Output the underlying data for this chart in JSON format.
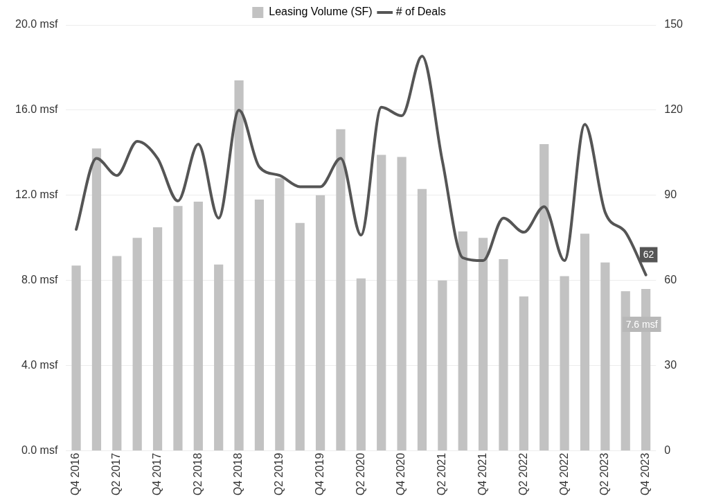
{
  "chart_data": {
    "type": "bar",
    "categories": [
      "Q4 2016",
      null,
      "Q2 2017",
      null,
      "Q4 2017",
      null,
      "Q2 2018",
      null,
      "Q4 2018",
      null,
      "Q2 2019",
      null,
      "Q4 2019",
      null,
      "Q2 2020",
      null,
      "Q4 2020",
      null,
      "Q2 2021",
      null,
      "Q4 2021",
      null,
      "Q2 2022",
      null,
      "Q4 2022",
      null,
      "Q2 2023",
      null,
      "Q4 2023"
    ],
    "series": [
      {
        "name": "Leasing Volume (SF)",
        "color": "#c2c2c2",
        "values": [
          8.7,
          14.2,
          9.15,
          10.0,
          10.5,
          11.5,
          11.7,
          8.75,
          17.4,
          11.8,
          12.8,
          10.7,
          12.0,
          15.1,
          8.1,
          13.9,
          13.8,
          12.3,
          8.0,
          10.3,
          10.0,
          9.0,
          7.25,
          14.4,
          8.2,
          10.2,
          8.85,
          7.5,
          7.6
        ],
        "value_labels": [
          null,
          null,
          null,
          null,
          null,
          null,
          null,
          null,
          null,
          null,
          null,
          null,
          null,
          null,
          null,
          null,
          null,
          null,
          null,
          null,
          null,
          null,
          null,
          null,
          null,
          null,
          null,
          null,
          "7.6 msf"
        ]
      },
      {
        "name": "# of Deals",
        "type": "line",
        "axis": "y2",
        "color": "#555555",
        "values": [
          78,
          103,
          97,
          109,
          103,
          88,
          108,
          82,
          120,
          100,
          97,
          93,
          93,
          103,
          76,
          121,
          118,
          139,
          102,
          68,
          67,
          82,
          77,
          86,
          67,
          115,
          84,
          77,
          62
        ],
        "value_labels": [
          null,
          null,
          null,
          null,
          null,
          null,
          null,
          null,
          null,
          null,
          null,
          null,
          null,
          null,
          null,
          null,
          null,
          null,
          null,
          null,
          null,
          null,
          null,
          null,
          null,
          null,
          null,
          null,
          "62"
        ]
      }
    ],
    "ylim": [
      0,
      20
    ],
    "yticks": [
      {
        "value": 0,
        "label": "0.0 msf"
      },
      {
        "value": 4,
        "label": "4.0 msf"
      },
      {
        "value": 8,
        "label": "8.0 msf"
      },
      {
        "value": 12,
        "label": "12.0 msf"
      },
      {
        "value": 16,
        "label": "16.0 msf"
      },
      {
        "value": 20,
        "label": "20.0 msf"
      }
    ],
    "y2lim": [
      0,
      150
    ],
    "y2ticks": [
      0,
      30,
      60,
      90,
      120,
      150
    ],
    "grid": "y",
    "legend": "top",
    "marker": "none",
    "line_style": "solid"
  }
}
